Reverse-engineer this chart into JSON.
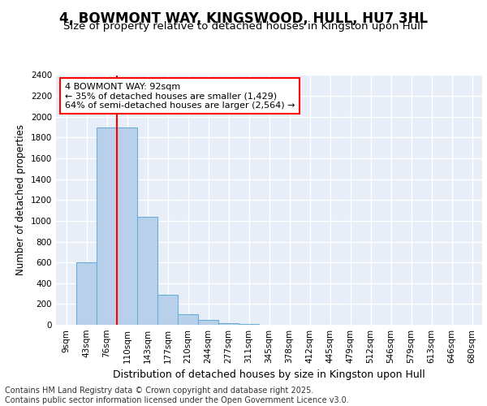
{
  "title": "4, BOWMONT WAY, KINGSWOOD, HULL, HU7 3HL",
  "subtitle": "Size of property relative to detached houses in Kingston upon Hull",
  "xlabel": "Distribution of detached houses by size in Kingston upon Hull",
  "ylabel": "Number of detached properties",
  "bin_labels": [
    "9sqm",
    "43sqm",
    "76sqm",
    "110sqm",
    "143sqm",
    "177sqm",
    "210sqm",
    "244sqm",
    "277sqm",
    "311sqm",
    "345sqm",
    "378sqm",
    "412sqm",
    "445sqm",
    "479sqm",
    "512sqm",
    "546sqm",
    "579sqm",
    "613sqm",
    "646sqm",
    "680sqm"
  ],
  "bar_heights": [
    0,
    600,
    1900,
    1900,
    1040,
    285,
    105,
    48,
    15,
    5,
    2,
    1,
    0,
    0,
    0,
    0,
    0,
    0,
    0,
    0,
    0
  ],
  "bar_color": "#b8d0ea",
  "bar_edge_color": "#6baed6",
  "vline_color": "red",
  "annotation_text": "4 BOWMONT WAY: 92sqm\n← 35% of detached houses are smaller (1,429)\n64% of semi-detached houses are larger (2,564) →",
  "annotation_box_color": "white",
  "annotation_box_edge": "red",
  "ylim": [
    0,
    2400
  ],
  "yticks": [
    0,
    200,
    400,
    600,
    800,
    1000,
    1200,
    1400,
    1600,
    1800,
    2000,
    2200,
    2400
  ],
  "background_color": "#e8eef8",
  "grid_color": "white",
  "footer": "Contains HM Land Registry data © Crown copyright and database right 2025.\nContains public sector information licensed under the Open Government Licence v3.0.",
  "title_fontsize": 12,
  "subtitle_fontsize": 9.5,
  "xlabel_fontsize": 9,
  "ylabel_fontsize": 8.5,
  "tick_fontsize": 7.5,
  "annotation_fontsize": 8,
  "footer_fontsize": 7
}
